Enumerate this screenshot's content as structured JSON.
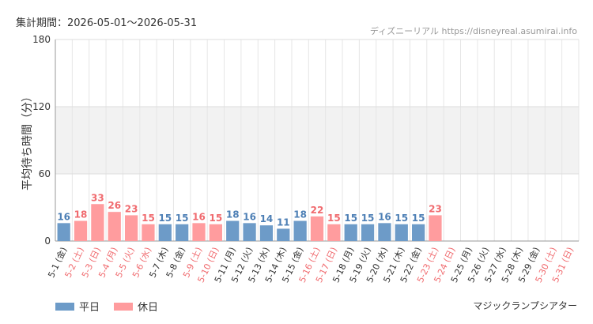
{
  "header": {
    "period_label": "集計期間：2026-05-01〜2026-05-31",
    "credit": "ディズニーリアル https://disneyreal.asumirai.info"
  },
  "colors": {
    "weekday": "#6d9bc8",
    "holiday": "#ff9c9e",
    "weekday_text": "#4d7fb5",
    "holiday_text": "#f06a6e"
  },
  "legend": {
    "weekday_label": "平日",
    "holiday_label": "休日"
  },
  "footer": {
    "attraction": "マジックランプシアター"
  },
  "chart_data": {
    "type": "bar",
    "title": "",
    "xlabel": "",
    "ylabel": "平均待ち時間（分）",
    "ylim": [
      0,
      180
    ],
    "yticks": [
      0,
      60,
      120,
      180
    ],
    "categories": [
      {
        "label": "5-1 (金)",
        "value": 16,
        "holiday": false
      },
      {
        "label": "5-2 (土)",
        "value": 18,
        "holiday": true
      },
      {
        "label": "5-3 (日)",
        "value": 33,
        "holiday": true
      },
      {
        "label": "5-4 (月)",
        "value": 26,
        "holiday": true
      },
      {
        "label": "5-5 (火)",
        "value": 23,
        "holiday": true
      },
      {
        "label": "5-6 (水)",
        "value": 15,
        "holiday": true
      },
      {
        "label": "5-7 (木)",
        "value": 15,
        "holiday": false
      },
      {
        "label": "5-8 (金)",
        "value": 15,
        "holiday": false
      },
      {
        "label": "5-9 (土)",
        "value": 16,
        "holiday": true
      },
      {
        "label": "5-10 (日)",
        "value": 15,
        "holiday": true
      },
      {
        "label": "5-11 (月)",
        "value": 18,
        "holiday": false
      },
      {
        "label": "5-12 (火)",
        "value": 16,
        "holiday": false
      },
      {
        "label": "5-13 (水)",
        "value": 14,
        "holiday": false
      },
      {
        "label": "5-14 (木)",
        "value": 11,
        "holiday": false
      },
      {
        "label": "5-15 (金)",
        "value": 18,
        "holiday": false
      },
      {
        "label": "5-16 (土)",
        "value": 22,
        "holiday": true
      },
      {
        "label": "5-17 (日)",
        "value": 15,
        "holiday": true
      },
      {
        "label": "5-18 (月)",
        "value": 15,
        "holiday": false
      },
      {
        "label": "5-19 (火)",
        "value": 15,
        "holiday": false
      },
      {
        "label": "5-20 (水)",
        "value": 16,
        "holiday": false
      },
      {
        "label": "5-21 (木)",
        "value": 15,
        "holiday": false
      },
      {
        "label": "5-22 (金)",
        "value": 15,
        "holiday": false
      },
      {
        "label": "5-23 (土)",
        "value": 23,
        "holiday": true
      },
      {
        "label": "5-24 (日)",
        "value": null,
        "holiday": true
      },
      {
        "label": "5-25 (月)",
        "value": null,
        "holiday": false
      },
      {
        "label": "5-26 (火)",
        "value": null,
        "holiday": false
      },
      {
        "label": "5-27 (水)",
        "value": null,
        "holiday": false
      },
      {
        "label": "5-28 (木)",
        "value": null,
        "holiday": false
      },
      {
        "label": "5-29 (金)",
        "value": null,
        "holiday": false
      },
      {
        "label": "5-30 (土)",
        "value": null,
        "holiday": true
      },
      {
        "label": "5-31 (日)",
        "value": null,
        "holiday": true
      }
    ]
  }
}
